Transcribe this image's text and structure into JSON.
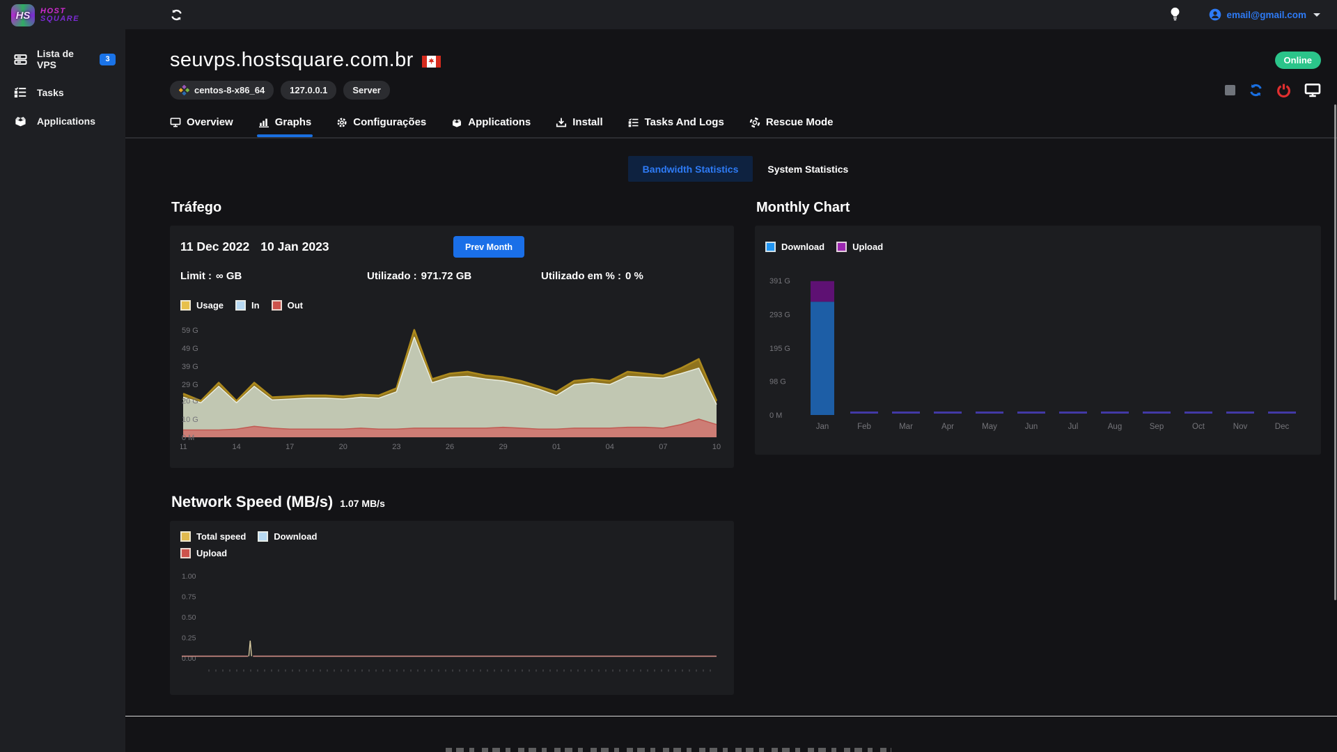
{
  "topbar": {
    "email": "email@gmail.com"
  },
  "sidebar": {
    "logo": {
      "monogram": "HS",
      "line1": "HOST",
      "line2": "SQUARE"
    },
    "items": [
      {
        "label": "Lista de VPS",
        "badge": "3"
      },
      {
        "label": "Tasks"
      },
      {
        "label": "Applications"
      }
    ]
  },
  "header": {
    "title": "seuvps.hostsquare.com.br",
    "status": "Online",
    "tags": [
      "centos-8-x86_64",
      "127.0.0.1",
      "Server"
    ]
  },
  "tabs": [
    {
      "label": "Overview"
    },
    {
      "label": "Graphs"
    },
    {
      "label": "Configurações"
    },
    {
      "label": "Applications"
    },
    {
      "label": "Install"
    },
    {
      "label": "Tasks And Logs"
    },
    {
      "label": "Rescue Mode"
    }
  ],
  "active_tab": "Graphs",
  "toggles": {
    "bandwidth": "Bandwidth Statistics",
    "system": "System Statistics"
  },
  "traffic_section": {
    "heading": "Tráfego",
    "date_from": "11 Dec 2022",
    "date_to": "10 Jan 2023",
    "prev_month_button": "Prev Month",
    "stats": [
      {
        "label": "Limit :",
        "value": "∞ GB"
      },
      {
        "label": "Utilizado :",
        "value": "971.72 GB"
      },
      {
        "label": "Utilizado em % :",
        "value": "0 %"
      }
    ]
  },
  "monthly_section": {
    "heading": "Monthly Chart"
  },
  "network_section": {
    "heading": "Network Speed (MB/s)",
    "current_speed": "1.07 MB/s"
  },
  "chart_data": [
    {
      "id": "traffic",
      "type": "area",
      "title": "Tráfego",
      "x_tick_labels": [
        "11",
        "14",
        "17",
        "20",
        "23",
        "26",
        "29",
        "01",
        "04",
        "07",
        "10"
      ],
      "x_tick_indices": [
        0,
        3,
        6,
        9,
        12,
        15,
        18,
        21,
        24,
        27,
        30
      ],
      "y_tick_labels": [
        "59 G",
        "49 G",
        "39 G",
        "29 G",
        "20 G",
        "10 G",
        "0 M"
      ],
      "y_tick_values": [
        59,
        49,
        39,
        29,
        20,
        10,
        0
      ],
      "ylim": [
        0,
        62
      ],
      "grid": false,
      "legend_position": "top",
      "series": [
        {
          "name": "Usage",
          "swatch": "#e7c04a",
          "stroke": "#ad8a1e",
          "stroke_width": 2.5,
          "fill": "#8f731d",
          "values": [
            24,
            20,
            30,
            20,
            30,
            22,
            22.5,
            23,
            23,
            22.5,
            23.5,
            23,
            27,
            59,
            32,
            35,
            36,
            34,
            33,
            31,
            28,
            25,
            31,
            32,
            31,
            36,
            35,
            34,
            38,
            43,
            20
          ]
        },
        {
          "name": "In",
          "swatch": "#b7d9f2",
          "stroke": "#e8ecdf",
          "stroke_width": 1.5,
          "fill": "#c1c7b2",
          "values": [
            22,
            19,
            28,
            19,
            28,
            20.5,
            21,
            21.5,
            21.5,
            21,
            22,
            21.5,
            25,
            55,
            30,
            33,
            33.5,
            32,
            31,
            29,
            26.5,
            23,
            29,
            30,
            29,
            33.5,
            33,
            32.5,
            35,
            38,
            18
          ]
        },
        {
          "name": "Out",
          "swatch": "#cd534c",
          "stroke": "#c05a52",
          "stroke_width": 1.5,
          "fill": "#cd7d75",
          "values": [
            4,
            4,
            4,
            4.5,
            6,
            5,
            4.5,
            4.5,
            4.5,
            4.5,
            5,
            4.5,
            4.5,
            5,
            5,
            5,
            5,
            5,
            5.5,
            5,
            4.5,
            4.5,
            5,
            5,
            5,
            5.5,
            5.5,
            5,
            7,
            10,
            7
          ]
        }
      ]
    },
    {
      "id": "monthly",
      "type": "stacked-bar",
      "title": "Monthly Chart",
      "categories": [
        "Jan",
        "Feb",
        "Mar",
        "Apr",
        "May",
        "Jun",
        "Jul",
        "Aug",
        "Sep",
        "Oct",
        "Nov",
        "Dec"
      ],
      "y_tick_labels": [
        "391 G",
        "293 G",
        "195 G",
        "98 G",
        "0 M"
      ],
      "y_tick_values": [
        391,
        293,
        195,
        98,
        0
      ],
      "ylim": [
        0,
        430
      ],
      "grid": false,
      "legend_position": "top",
      "zero_bar_color": "#4239a6",
      "series": [
        {
          "name": "Download",
          "swatch": "#2196f3",
          "fill": "#1d5ea6",
          "values": [
            330,
            0,
            0,
            0,
            0,
            0,
            0,
            0,
            0,
            0,
            0,
            0
          ]
        },
        {
          "name": "Upload",
          "swatch": "#9c27b0",
          "fill": "#5e1173",
          "values": [
            60,
            0,
            0,
            0,
            0,
            0,
            0,
            0,
            0,
            0,
            0,
            0
          ]
        }
      ]
    },
    {
      "id": "network",
      "type": "line",
      "title": "Network Speed (MB/s)",
      "current": "1.07 MB/s",
      "y_tick_labels": [
        "1.00",
        "0.75",
        "0.50",
        "0.25",
        "0.00"
      ],
      "y_tick_values": [
        1,
        0.75,
        0.5,
        0.25,
        0
      ],
      "ylim": [
        0,
        1.05
      ],
      "grid": false,
      "legend_position": "top",
      "baseline_value": 0.03,
      "spike": {
        "x_fraction": 0.128,
        "value": 0.22
      },
      "series": [
        {
          "name": "Total speed",
          "swatch": "#e0b94e",
          "stroke": "#d8cba0"
        },
        {
          "name": "Download",
          "swatch": "#b7d9f2",
          "stroke": "#b7d9f2"
        },
        {
          "name": "Upload",
          "swatch": "#cd534c",
          "stroke": "#cf8d85"
        }
      ]
    }
  ]
}
